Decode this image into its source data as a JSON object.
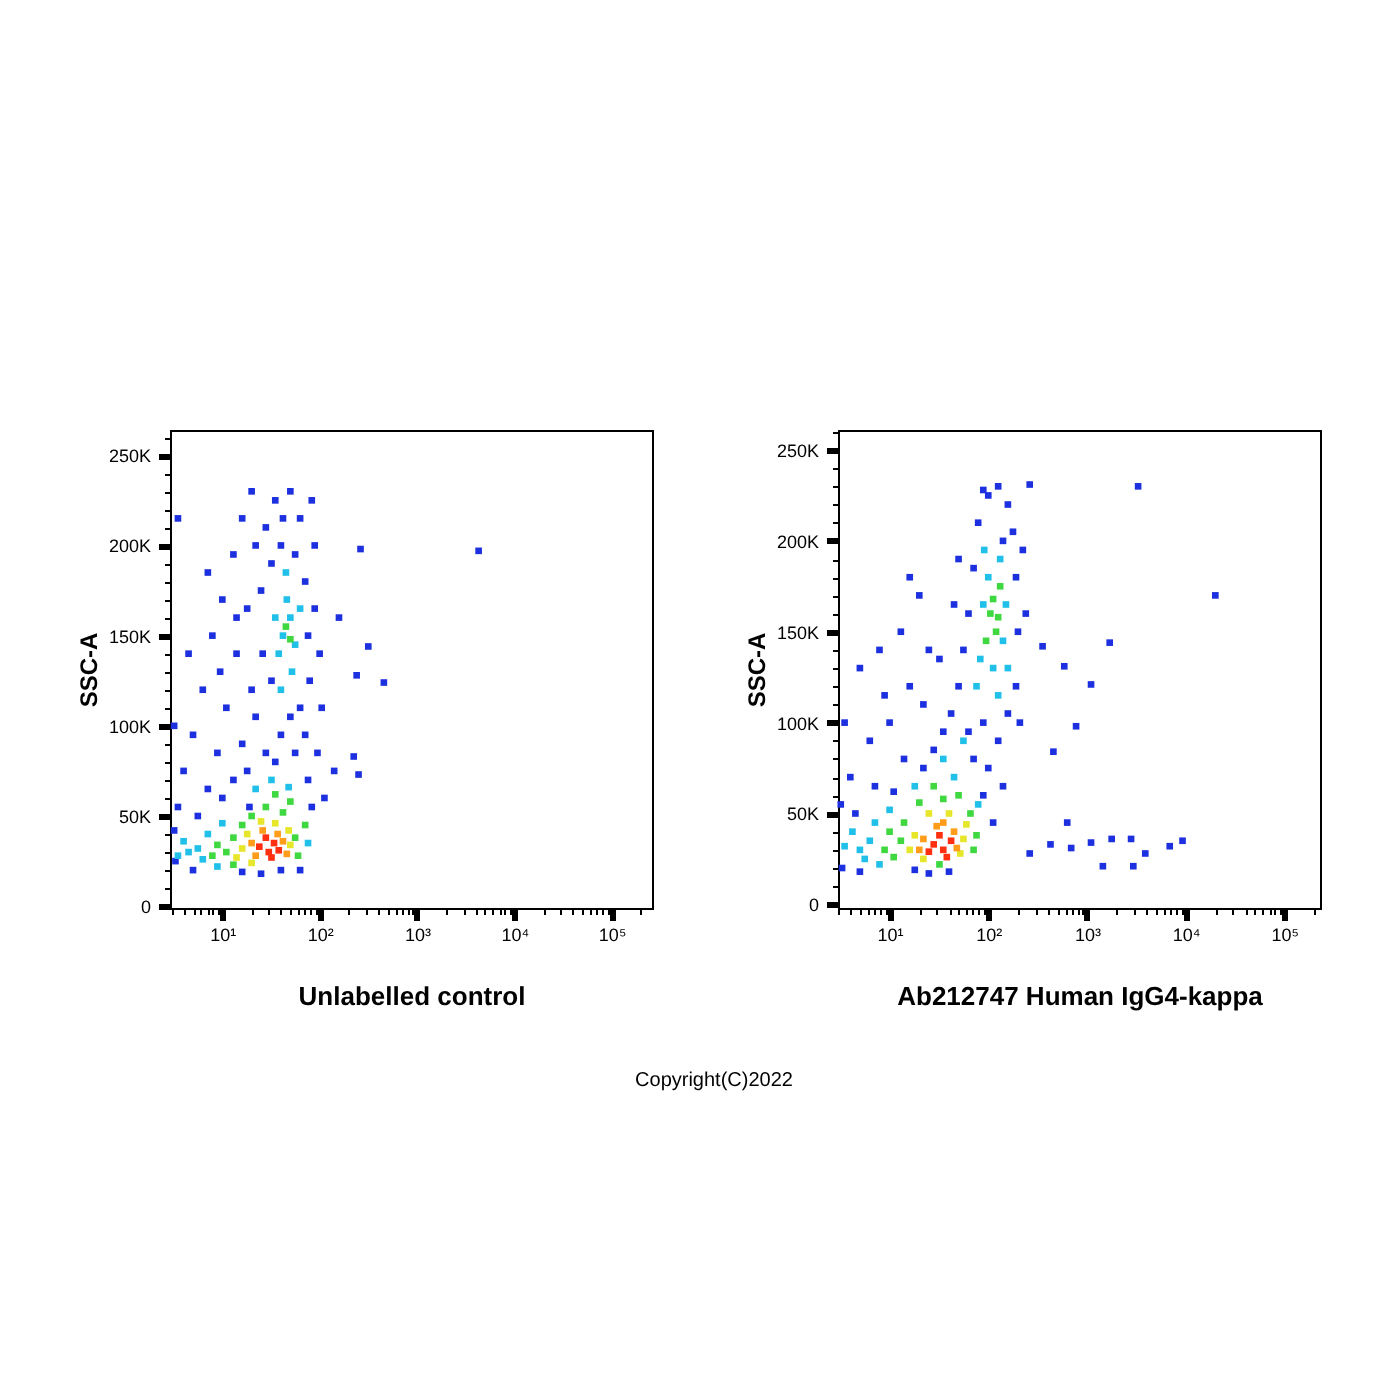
{
  "chart_data": [
    {
      "type": "scatter",
      "xlabel": "Unlabelled control",
      "ylabel": "SSC-A",
      "log": "x",
      "marker": "square",
      "xlim": [
        2.9,
        260000
      ],
      "ylim": [
        -1000,
        264000
      ],
      "xticks": [
        {
          "value": 3,
          "label": null
        },
        {
          "value": 4,
          "label": null
        },
        {
          "value": 5,
          "label": null
        },
        {
          "value": 6,
          "label": null
        },
        {
          "value": 7,
          "label": null
        },
        {
          "value": 8,
          "label": null
        },
        {
          "value": 9,
          "label": null
        },
        {
          "value": 10,
          "label": "10¹"
        },
        {
          "value": 20,
          "label": null
        },
        {
          "value": 30,
          "label": null
        },
        {
          "value": 40,
          "label": null
        },
        {
          "value": 50,
          "label": null
        },
        {
          "value": 60,
          "label": null
        },
        {
          "value": 70,
          "label": null
        },
        {
          "value": 80,
          "label": null
        },
        {
          "value": 90,
          "label": null
        },
        {
          "value": 100,
          "label": "10²"
        },
        {
          "value": 200,
          "label": null
        },
        {
          "value": 300,
          "label": null
        },
        {
          "value": 400,
          "label": null
        },
        {
          "value": 500,
          "label": null
        },
        {
          "value": 600,
          "label": null
        },
        {
          "value": 700,
          "label": null
        },
        {
          "value": 800,
          "label": null
        },
        {
          "value": 900,
          "label": null
        },
        {
          "value": 1000,
          "label": "10³"
        },
        {
          "value": 2000,
          "label": null
        },
        {
          "value": 3000,
          "label": null
        },
        {
          "value": 4000,
          "label": null
        },
        {
          "value": 5000,
          "label": null
        },
        {
          "value": 6000,
          "label": null
        },
        {
          "value": 7000,
          "label": null
        },
        {
          "value": 8000,
          "label": null
        },
        {
          "value": 9000,
          "label": null
        },
        {
          "value": 10000,
          "label": "10⁴"
        },
        {
          "value": 20000,
          "label": null
        },
        {
          "value": 30000,
          "label": null
        },
        {
          "value": 40000,
          "label": null
        },
        {
          "value": 50000,
          "label": null
        },
        {
          "value": 60000,
          "label": null
        },
        {
          "value": 70000,
          "label": null
        },
        {
          "value": 80000,
          "label": null
        },
        {
          "value": 90000,
          "label": null
        },
        {
          "value": 100000,
          "label": "10⁵"
        },
        {
          "value": 200000,
          "label": null
        }
      ],
      "yticks": [
        0,
        {
          "value": 10000,
          "label": null
        },
        {
          "value": 20000,
          "label": null
        },
        {
          "value": 30000,
          "label": null
        },
        {
          "value": 40000,
          "label": null
        },
        {
          "value": 50000,
          "label": "50K"
        },
        {
          "value": 60000,
          "label": null
        },
        {
          "value": 70000,
          "label": null
        },
        {
          "value": 80000,
          "label": null
        },
        {
          "value": 90000,
          "label": null
        },
        {
          "value": 100000,
          "label": "100K"
        },
        {
          "value": 110000,
          "label": null
        },
        {
          "value": 120000,
          "label": null
        },
        {
          "value": 130000,
          "label": null
        },
        {
          "value": 140000,
          "label": null
        },
        {
          "value": 150000,
          "label": "150K"
        },
        {
          "value": 160000,
          "label": null
        },
        {
          "value": 170000,
          "label": null
        },
        {
          "value": 180000,
          "label": null
        },
        {
          "value": 190000,
          "label": null
        },
        {
          "value": 200000,
          "label": "200K"
        },
        {
          "value": 210000,
          "label": null
        },
        {
          "value": 220000,
          "label": null
        },
        {
          "value": 230000,
          "label": null
        },
        {
          "value": 240000,
          "label": null
        },
        {
          "value": 250000,
          "label": "250K"
        },
        {
          "value": 260000,
          "label": null
        }
      ],
      "annotations": [
        "Copyright(C)2022"
      ],
      "series": [
        {
          "color": "#1c30e0",
          "x": [
            28,
            35,
            50,
            63,
            40,
            32,
            56,
            71,
            25,
            76,
            26,
            32,
            63,
            79,
            22,
            40,
            56,
            28,
            20,
            71,
            89,
            89,
            22,
            42,
            83,
            18,
            50,
            35,
            76,
            83,
            63,
            40,
            25,
            16,
            100,
            105,
            95,
            112,
            13,
            10,
            7.9,
            14,
            6.3,
            11,
            5,
            8.9,
            16,
            4,
            7.1,
            13,
            3.5,
            5.6,
            18,
            3.2,
            3.3,
            5,
            10,
            14,
            9.5,
            4.5,
            3.5,
            16,
            20,
            7.1,
            3.2,
            19,
            240,
            316,
            457,
            224,
            251,
            263,
            4300,
            141,
            158
          ],
          "values": [
            210000,
            225000,
            230000,
            215000,
            200000,
            190000,
            195000,
            180000,
            175000,
            150000,
            140000,
            125000,
            110000,
            125000,
            105000,
            95000,
            85000,
            85000,
            120000,
            95000,
            165000,
            200000,
            200000,
            215000,
            225000,
            165000,
            105000,
            80000,
            70000,
            55000,
            20000,
            20000,
            18000,
            19000,
            140000,
            110000,
            85000,
            60000,
            195000,
            170000,
            150000,
            140000,
            120000,
            110000,
            95000,
            85000,
            90000,
            75000,
            65000,
            70000,
            55000,
            50000,
            75000,
            42000,
            25000,
            20000,
            60000,
            160000,
            130000,
            140000,
            215000,
            215000,
            230000,
            185000,
            100000,
            55000,
            128000,
            144000,
            124000,
            83000,
            73000,
            198000,
            197000,
            75000,
            160000
          ]
        },
        {
          "color": "#20c0e8",
          "x": [
            5.6,
            4.5,
            7.1,
            4,
            6.3,
            10,
            22,
            48,
            76,
            32,
            8.9,
            3.5,
            42,
            50,
            38,
            56,
            46,
            35,
            52,
            40,
            63,
            45
          ],
          "values": [
            32000,
            30000,
            40000,
            36000,
            26000,
            46000,
            65000,
            66000,
            35000,
            70000,
            22000,
            28000,
            150000,
            160000,
            140000,
            145000,
            170000,
            160000,
            130000,
            120000,
            165000,
            185000
          ]
        },
        {
          "color": "#40d840",
          "x": [
            11,
            8.9,
            13,
            56,
            42,
            28,
            20,
            60,
            16,
            7.9,
            50,
            35,
            71,
            13,
            45,
            50
          ],
          "values": [
            30000,
            34000,
            38000,
            38000,
            52000,
            55000,
            50000,
            28000,
            45000,
            28000,
            58000,
            62000,
            45000,
            23000,
            155000,
            148000
          ]
        },
        {
          "color": "#e6e62a",
          "x": [
            16,
            18,
            50,
            35,
            25,
            14,
            48,
            20
          ],
          "values": [
            32000,
            40000,
            34000,
            46000,
            47000,
            27000,
            42000,
            24000
          ]
        },
        {
          "color": "#ff9c1a",
          "x": [
            20,
            42,
            26,
            22,
            37,
            46
          ],
          "values": [
            35000,
            36000,
            42000,
            28000,
            40000,
            29000
          ]
        },
        {
          "color": "#ff3010",
          "x": [
            24,
            30,
            34,
            28,
            38,
            32
          ],
          "values": [
            33000,
            30000,
            35000,
            38000,
            31000,
            27000
          ]
        }
      ]
    },
    {
      "type": "scatter",
      "xlabel": "Ab212747 Human IgG4-kappa",
      "ylabel": "SSC-A",
      "log": "x",
      "marker": "square",
      "xlim": [
        3,
        230000
      ],
      "ylim": [
        -2000,
        261000
      ],
      "xticks": [
        {
          "value": 3,
          "label": null
        },
        {
          "value": 4,
          "label": null
        },
        {
          "value": 5,
          "label": null
        },
        {
          "value": 6,
          "label": null
        },
        {
          "value": 7,
          "label": null
        },
        {
          "value": 8,
          "label": null
        },
        {
          "value": 9,
          "label": null
        },
        {
          "value": 10,
          "label": "10¹"
        },
        {
          "value": 20,
          "label": null
        },
        {
          "value": 30,
          "label": null
        },
        {
          "value": 40,
          "label": null
        },
        {
          "value": 50,
          "label": null
        },
        {
          "value": 60,
          "label": null
        },
        {
          "value": 70,
          "label": null
        },
        {
          "value": 80,
          "label": null
        },
        {
          "value": 90,
          "label": null
        },
        {
          "value": 100,
          "label": "10²"
        },
        {
          "value": 200,
          "label": null
        },
        {
          "value": 300,
          "label": null
        },
        {
          "value": 400,
          "label": null
        },
        {
          "value": 500,
          "label": null
        },
        {
          "value": 600,
          "label": null
        },
        {
          "value": 700,
          "label": null
        },
        {
          "value": 800,
          "label": null
        },
        {
          "value": 900,
          "label": null
        },
        {
          "value": 1000,
          "label": "10³"
        },
        {
          "value": 2000,
          "label": null
        },
        {
          "value": 3000,
          "label": null
        },
        {
          "value": 4000,
          "label": null
        },
        {
          "value": 5000,
          "label": null
        },
        {
          "value": 6000,
          "label": null
        },
        {
          "value": 7000,
          "label": null
        },
        {
          "value": 8000,
          "label": null
        },
        {
          "value": 9000,
          "label": null
        },
        {
          "value": 10000,
          "label": "10⁴"
        },
        {
          "value": 20000,
          "label": null
        },
        {
          "value": 30000,
          "label": null
        },
        {
          "value": 40000,
          "label": null
        },
        {
          "value": 50000,
          "label": null
        },
        {
          "value": 60000,
          "label": null
        },
        {
          "value": 70000,
          "label": null
        },
        {
          "value": 80000,
          "label": null
        },
        {
          "value": 90000,
          "label": null
        },
        {
          "value": 100000,
          "label": "10⁵"
        },
        {
          "value": 200000,
          "label": null
        }
      ],
      "yticks": [
        0,
        {
          "value": 10000,
          "label": null
        },
        {
          "value": 20000,
          "label": null
        },
        {
          "value": 30000,
          "label": null
        },
        {
          "value": 40000,
          "label": null
        },
        {
          "value": 50000,
          "label": "50K"
        },
        {
          "value": 60000,
          "label": null
        },
        {
          "value": 70000,
          "label": null
        },
        {
          "value": 80000,
          "label": null
        },
        {
          "value": 90000,
          "label": null
        },
        {
          "value": 100000,
          "label": "100K"
        },
        {
          "value": 110000,
          "label": null
        },
        {
          "value": 120000,
          "label": null
        },
        {
          "value": 130000,
          "label": null
        },
        {
          "value": 140000,
          "label": null
        },
        {
          "value": 150000,
          "label": "150K"
        },
        {
          "value": 160000,
          "label": null
        },
        {
          "value": 170000,
          "label": null
        },
        {
          "value": 180000,
          "label": null
        },
        {
          "value": 190000,
          "label": null
        },
        {
          "value": 200000,
          "label": "200K"
        },
        {
          "value": 210000,
          "label": null
        },
        {
          "value": 220000,
          "label": null
        },
        {
          "value": 230000,
          "label": null
        },
        {
          "value": 240000,
          "label": null
        },
        {
          "value": 250000,
          "label": "250K"
        },
        {
          "value": 260000,
          "label": null
        }
      ],
      "series": [
        {
          "color": "#1c30e0",
          "x": [
            100,
            126,
            158,
            178,
            79,
            141,
            71,
            191,
            63,
            200,
            56,
            191,
            50,
            158,
            42,
            89,
            63,
            126,
            35,
            71,
            100,
            28,
            89,
            112,
            40,
            25,
            18,
            224,
            240,
            89,
            209,
            141,
            50,
            45,
            32,
            22,
            20,
            13,
            7.9,
            16,
            5,
            10,
            6.3,
            14,
            4,
            7.1,
            3.2,
            11,
            4.5,
            22,
            3.3,
            5,
            16,
            8.9,
            25,
            3.5,
            3300,
            20000,
            1700,
            1100,
            776,
            457,
            631,
            2800,
            3900,
            6900,
            9300,
            1450,
            2950,
            1100,
            427,
            263,
            692,
            1780,
            355,
            589,
            263
          ],
          "values": [
            225000,
            230000,
            220000,
            205000,
            210000,
            200000,
            185000,
            180000,
            160000,
            150000,
            140000,
            120000,
            120000,
            105000,
            105000,
            100000,
            95000,
            90000,
            95000,
            80000,
            75000,
            85000,
            60000,
            45000,
            18000,
            17000,
            19000,
            195000,
            160000,
            228000,
            100000,
            65000,
            190000,
            165000,
            135000,
            110000,
            170000,
            150000,
            140000,
            120000,
            130000,
            100000,
            90000,
            80000,
            70000,
            65000,
            55000,
            62000,
            50000,
            75000,
            20000,
            18000,
            180000,
            115000,
            140000,
            100000,
            230000,
            170000,
            144000,
            121000,
            98000,
            84000,
            45000,
            36000,
            28000,
            32000,
            35000,
            21000,
            21000,
            34000,
            33000,
            28000,
            31000,
            36000,
            142000,
            131000,
            231000
          ]
        },
        {
          "color": "#20c0e8",
          "x": [
            89,
            141,
            83,
            151,
            100,
            112,
            76,
            132,
            158,
            91,
            126,
            6.3,
            5,
            7.1,
            4.2,
            5.6,
            10,
            18,
            45,
            79,
            35,
            56,
            3.5,
            7.9
          ],
          "values": [
            165000,
            145000,
            135000,
            165000,
            180000,
            130000,
            120000,
            190000,
            130000,
            195000,
            115000,
            35000,
            30000,
            45000,
            40000,
            25000,
            52000,
            65000,
            70000,
            55000,
            80000,
            90000,
            32000,
            22000
          ]
        },
        {
          "color": "#40d840",
          "x": [
            13,
            10,
            8.9,
            14,
            66,
            35,
            50,
            20,
            71,
            11,
            32,
            76,
            28,
            105,
            120,
            112,
            126,
            95,
            132
          ],
          "values": [
            35000,
            40000,
            30000,
            45000,
            50000,
            58000,
            60000,
            56000,
            30000,
            26000,
            22000,
            38000,
            65000,
            160000,
            150000,
            168000,
            158000,
            145000,
            175000
          ]
        },
        {
          "color": "#e6e62a",
          "x": [
            18,
            16,
            56,
            40,
            25,
            52,
            22,
            60
          ],
          "values": [
            38000,
            30000,
            36000,
            50000,
            50000,
            28000,
            25000,
            44000
          ]
        },
        {
          "color": "#ff9c1a",
          "x": [
            22,
            48,
            30,
            20,
            45,
            35
          ],
          "values": [
            36000,
            31000,
            43000,
            30000,
            40000,
            45000
          ]
        },
        {
          "color": "#ff3010",
          "x": [
            28,
            35,
            42,
            32,
            25,
            38
          ],
          "values": [
            33000,
            30000,
            35000,
            38000,
            29000,
            26000
          ]
        }
      ]
    }
  ]
}
